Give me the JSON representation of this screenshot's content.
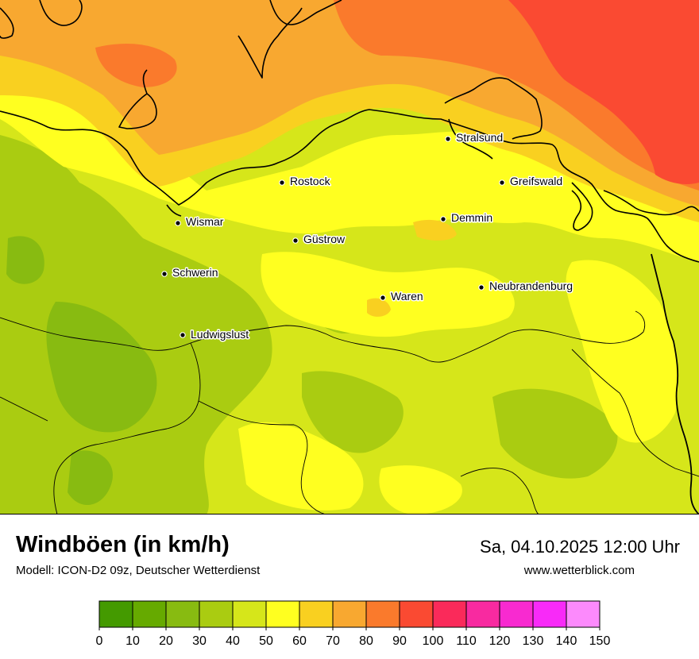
{
  "title": "Windböen (in km/h)",
  "subtitle": "Modell: ICON-D2 09z, Deutscher Wetterdienst",
  "datetime": "Sa, 04.10.2025 12:00 Uhr",
  "website": "www.wetterblick.com",
  "cities": [
    {
      "name": "Stralsund"
    },
    {
      "name": "Rostock"
    },
    {
      "name": "Greifswald"
    },
    {
      "name": "Wismar"
    },
    {
      "name": "Demmin"
    },
    {
      "name": "Güstrow"
    },
    {
      "name": "Schwerin"
    },
    {
      "name": "Neubrandenburg"
    },
    {
      "name": "Waren"
    },
    {
      "name": "Ludwigslust"
    }
  ],
  "legend": {
    "ticks": [
      "0",
      "10",
      "20",
      "30",
      "40",
      "50",
      "60",
      "70",
      "80",
      "90",
      "100",
      "110",
      "120",
      "130",
      "140",
      "150"
    ],
    "colors": [
      "#449a00",
      "#66aa00",
      "#88bb11",
      "#aacc11",
      "#d6e61a",
      "#ffff20",
      "#f9d020",
      "#f8a830",
      "#fa7a2c",
      "#fa4a32",
      "#fa2a5a",
      "#f82aa0",
      "#f82ad0",
      "#f82af8",
      "#fc8afc"
    ]
  }
}
